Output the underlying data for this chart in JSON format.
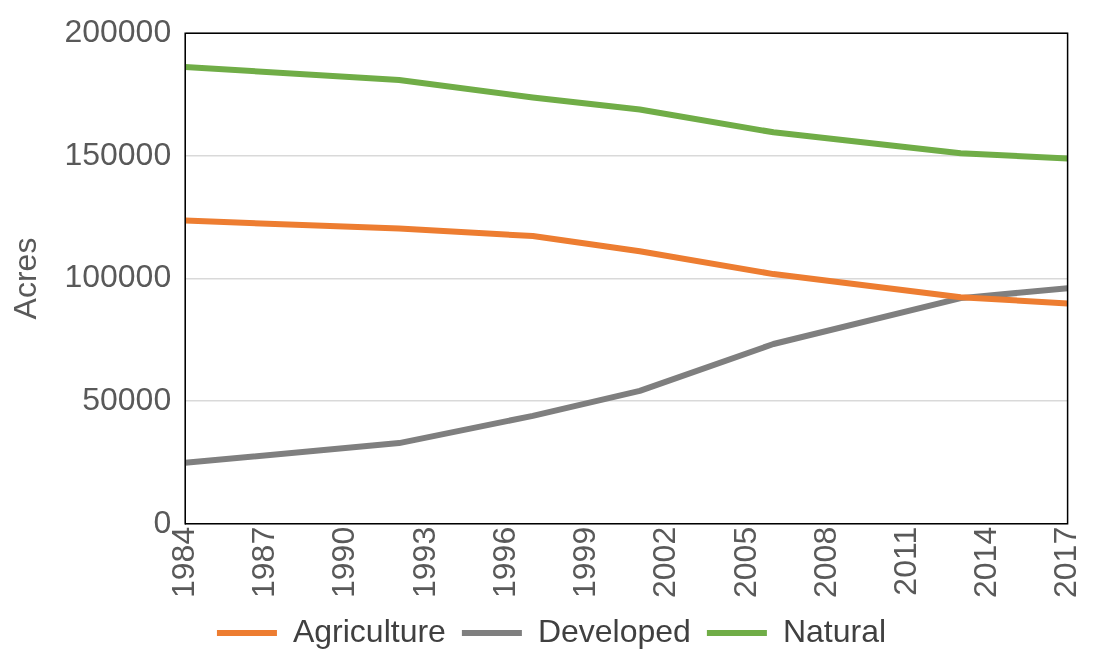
{
  "chart_data": {
    "type": "line",
    "ylabel": "Acres",
    "x": [
      1984,
      1992,
      1997,
      2001,
      2006,
      2013,
      2017
    ],
    "series": [
      {
        "name": "Agriculture",
        "color": "#ed7d31",
        "values": [
          123600,
          120400,
          117300,
          111100,
          101800,
          92400,
          89800
        ]
      },
      {
        "name": "Developed",
        "color": "#7f7f7f",
        "values": [
          24900,
          32900,
          44000,
          54200,
          73300,
          92000,
          96000
        ]
      },
      {
        "name": "Natural",
        "color": "#70ad47",
        "values": [
          186200,
          180900,
          173800,
          168900,
          159600,
          151100,
          148900
        ]
      }
    ],
    "xlim": [
      1984,
      2017
    ],
    "xticks": [
      1984,
      1987,
      1990,
      1993,
      1996,
      1999,
      2002,
      2005,
      2008,
      2011,
      2014,
      2017
    ],
    "ylim": [
      0,
      200000
    ],
    "yticks": [
      0,
      50000,
      100000,
      150000,
      200000
    ],
    "grid": "y",
    "legend": "bottom",
    "marker": "none",
    "line_style": "solid"
  }
}
